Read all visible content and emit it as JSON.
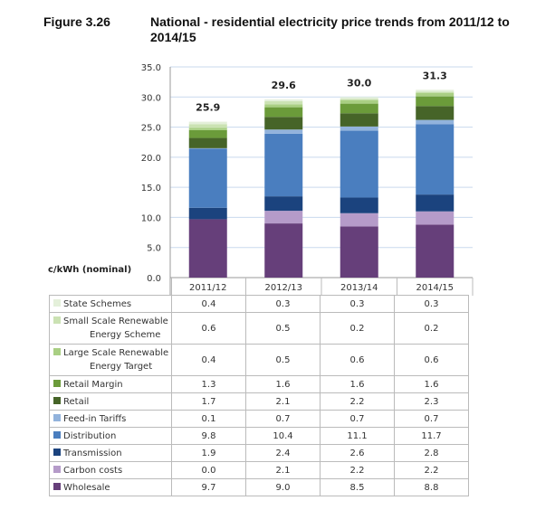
{
  "figure_label": "Figure 3.26",
  "chart_data": {
    "type": "bar",
    "stacked": true,
    "title": "National - residential electricity price trends from 2011/12 to 2014/15",
    "ylabel": "c/kWh (nominal)",
    "xlabel": "",
    "ylim": [
      0,
      35
    ],
    "yticks": [
      "0.0",
      "5.0",
      "10.0",
      "15.0",
      "20.0",
      "25.0",
      "30.0",
      "35.0"
    ],
    "grid": true,
    "legend": "table-below",
    "categories": [
      "2011/12",
      "2012/13",
      "2013/14",
      "2014/15"
    ],
    "totals": [
      "25.9",
      "29.6",
      "30.0",
      "31.3"
    ],
    "series": [
      {
        "name": "Wholesale",
        "color": "#663f7a",
        "values": [
          9.7,
          9.0,
          8.5,
          8.8
        ],
        "labels": [
          "9.7",
          "9.0",
          "8.5",
          "8.8"
        ]
      },
      {
        "name": "Carbon costs",
        "color": "#b59bc9",
        "values": [
          0.0,
          2.1,
          2.2,
          2.2
        ],
        "labels": [
          "0.0",
          "2.1",
          "2.2",
          "2.2"
        ]
      },
      {
        "name": "Transmission",
        "color": "#1b437e",
        "values": [
          1.9,
          2.4,
          2.6,
          2.8
        ],
        "labels": [
          "1.9",
          "2.4",
          "2.6",
          "2.8"
        ]
      },
      {
        "name": "Distribution",
        "color": "#4a7ebf",
        "values": [
          9.8,
          10.4,
          11.1,
          11.7
        ],
        "labels": [
          "9.8",
          "10.4",
          "11.1",
          "11.7"
        ]
      },
      {
        "name": "Feed-in Tariffs",
        "color": "#92b3dc",
        "values": [
          0.1,
          0.7,
          0.7,
          0.7
        ],
        "labels": [
          "0.1",
          "0.7",
          "0.7",
          "0.7"
        ]
      },
      {
        "name": "Retail",
        "color": "#466428",
        "values": [
          1.7,
          2.1,
          2.2,
          2.3
        ],
        "labels": [
          "1.7",
          "2.1",
          "2.2",
          "2.3"
        ]
      },
      {
        "name": "Retail Margin",
        "color": "#6b9b3a",
        "values": [
          1.3,
          1.6,
          1.6,
          1.6
        ],
        "labels": [
          "1.3",
          "1.6",
          "1.6",
          "1.6"
        ]
      },
      {
        "name": "Large Scale Renewable Energy Target",
        "name_lines": [
          "Large Scale Renewable",
          "Energy Target"
        ],
        "color": "#a9cf83",
        "values": [
          0.4,
          0.5,
          0.6,
          0.6
        ],
        "labels": [
          "0.4",
          "0.5",
          "0.6",
          "0.6"
        ]
      },
      {
        "name": "Small Scale Renewable Energy Scheme",
        "name_lines": [
          "Small Scale Renewable",
          "Energy Scheme"
        ],
        "color": "#cbe2b3",
        "values": [
          0.6,
          0.5,
          0.2,
          0.2
        ],
        "labels": [
          "0.6",
          "0.5",
          "0.2",
          "0.2"
        ]
      },
      {
        "name": "State Schemes",
        "color": "#e4f0da",
        "values": [
          0.4,
          0.3,
          0.3,
          0.3
        ],
        "labels": [
          "0.4",
          "0.3",
          "0.3",
          "0.3"
        ]
      }
    ]
  }
}
